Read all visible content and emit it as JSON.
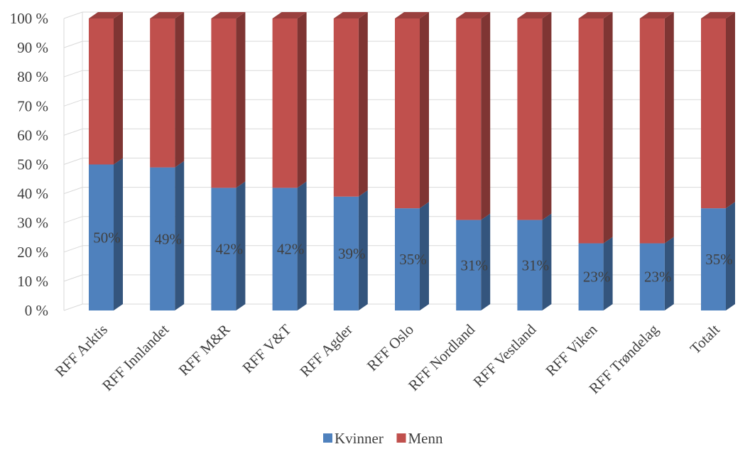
{
  "chart_data": {
    "type": "bar",
    "stacked": true,
    "percent_stacked": true,
    "three_d": true,
    "categories": [
      "RFF Arktis",
      "RFF Innlandet",
      "RFF M&R",
      "RFF V&T",
      "RFF Agder",
      "RFF Oslo",
      "RFF Nordland",
      "RFF Vestland",
      "RFF Viken",
      "RFF Trøndelag",
      "Totalt"
    ],
    "series": [
      {
        "name": "Kvinner",
        "color": "#4f81bd",
        "values": [
          50,
          49,
          42,
          42,
          39,
          35,
          31,
          31,
          23,
          23,
          35
        ],
        "data_labels": [
          "50%",
          "49%",
          "42%",
          "42%",
          "39%",
          "35%",
          "31%",
          "31%",
          "23%",
          "23%",
          "35%"
        ]
      },
      {
        "name": "Menn",
        "color": "#c0504d",
        "values": [
          50,
          51,
          58,
          58,
          61,
          65,
          69,
          69,
          77,
          77,
          65
        ]
      }
    ],
    "yticks": [
      "0 %",
      "10 %",
      "20 %",
      "30 %",
      "40 %",
      "50 %",
      "60 %",
      "70 %",
      "80 %",
      "90 %",
      "100 %"
    ],
    "ylim": [
      0,
      100
    ],
    "grid": true,
    "legend": "bottom",
    "title": "",
    "xlabel": "",
    "ylabel": ""
  }
}
